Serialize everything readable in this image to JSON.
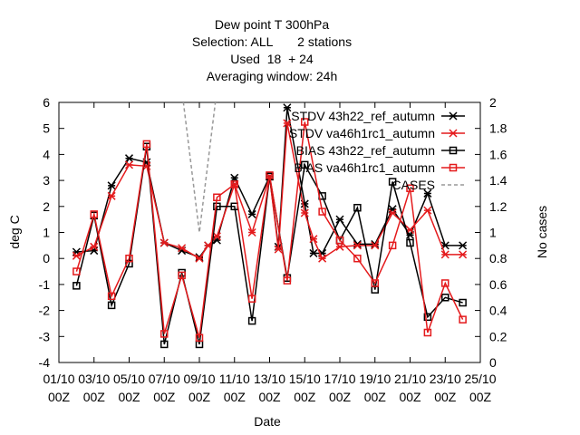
{
  "chart_data": {
    "type": "line",
    "title_lines": [
      "Dew point T 300hPa",
      "Selection: ALL       2 stations",
      "Used  18  + 24",
      "Averaging window: 24h"
    ],
    "xlabel": "Date",
    "ylabel": "deg C",
    "y2label": "No cases",
    "ylim": [
      -4,
      6
    ],
    "y2lim": [
      0,
      2
    ],
    "yticks": [
      "-4",
      "-3",
      "-2",
      "-1",
      "0",
      "1",
      "2",
      "3",
      "4",
      "5",
      "6"
    ],
    "y2ticks": [
      "0",
      "0.2",
      "0.4",
      "0.6",
      "0.8",
      "1",
      "1.2",
      "1.4",
      "1.6",
      "1.8",
      "2"
    ],
    "xlim": [
      1,
      25
    ],
    "xticks": [
      {
        "x": 1,
        "line1": "01/10",
        "line2": "00Z"
      },
      {
        "x": 3,
        "line1": "03/10",
        "line2": "00Z"
      },
      {
        "x": 5,
        "line1": "05/10",
        "line2": "00Z"
      },
      {
        "x": 7,
        "line1": "07/10",
        "line2": "00Z"
      },
      {
        "x": 9,
        "line1": "09/10",
        "line2": "00Z"
      },
      {
        "x": 11,
        "line1": "11/10",
        "line2": "00Z"
      },
      {
        "x": 13,
        "line1": "13/10",
        "line2": "00Z"
      },
      {
        "x": 15,
        "line1": "15/10",
        "line2": "00Z"
      },
      {
        "x": 17,
        "line1": "17/10",
        "line2": "00Z"
      },
      {
        "x": 19,
        "line1": "19/10",
        "line2": "00Z"
      },
      {
        "x": 21,
        "line1": "21/10",
        "line2": "00Z"
      },
      {
        "x": 23,
        "line1": "23/10",
        "line2": "00Z"
      },
      {
        "x": 25,
        "line1": "25/10",
        "line2": "00Z"
      }
    ],
    "legend_position": "top-right",
    "series": [
      {
        "name": "STDV 43h22_ref_autumn",
        "color": "#000000",
        "marker": "star",
        "x": [
          2,
          3,
          4,
          5,
          6,
          7,
          8,
          9,
          9.5,
          10,
          11,
          12,
          13,
          13.5,
          14,
          15,
          15.5,
          16,
          17,
          18,
          19,
          20,
          21,
          22,
          23,
          24
        ],
        "y": [
          0.25,
          0.3,
          2.8,
          3.85,
          3.7,
          0.6,
          0.3,
          0.05,
          0.5,
          0.7,
          3.1,
          1.7,
          3.15,
          0.45,
          5.8,
          2.1,
          0.2,
          0.2,
          1.5,
          0.55,
          0.55,
          1.9,
          0.9,
          2.5,
          0.5,
          0.5
        ]
      },
      {
        "name": "STDV va46h1rc1_autumn",
        "color": "#e41a1c",
        "marker": "star",
        "x": [
          2,
          3,
          4,
          5,
          6,
          7,
          8,
          9,
          9.5,
          10,
          11,
          12,
          13,
          13.5,
          14,
          15,
          15.5,
          16,
          17,
          18,
          19,
          20,
          21,
          22,
          23,
          24
        ],
        "y": [
          0.1,
          0.45,
          2.4,
          3.6,
          3.55,
          0.6,
          0.4,
          0.0,
          0.5,
          0.85,
          2.85,
          1.0,
          3.15,
          0.35,
          5.2,
          1.75,
          0.75,
          0.0,
          0.45,
          0.5,
          0.5,
          1.75,
          1.1,
          1.85,
          0.15,
          0.15
        ]
      },
      {
        "name": "BIAS 43h22_ref_autumn",
        "color": "#000000",
        "marker": "square",
        "x": [
          2,
          3,
          4,
          5,
          6,
          7,
          8,
          9,
          10,
          11,
          12,
          13,
          14,
          15,
          16,
          17,
          18,
          19,
          20,
          21,
          22,
          23,
          24
        ],
        "y": [
          -1.05,
          1.65,
          -1.8,
          -0.2,
          4.3,
          -3.3,
          -0.55,
          -3.3,
          2.0,
          2.0,
          -2.4,
          3.15,
          -0.75,
          3.6,
          2.4,
          0.7,
          1.95,
          -1.2,
          2.95,
          0.6,
          -2.25,
          -1.5,
          -1.7
        ]
      },
      {
        "name": "BIAS va46h1rc1_autumn",
        "color": "#e41a1c",
        "marker": "square",
        "x": [
          2,
          3,
          4,
          5,
          6,
          7,
          8,
          9,
          10,
          11,
          12,
          13,
          14,
          15,
          16,
          17,
          18,
          19,
          20,
          21,
          22,
          23,
          24
        ],
        "y": [
          -0.5,
          1.7,
          -1.45,
          0.0,
          4.4,
          -2.9,
          -0.65,
          -3.05,
          2.35,
          2.85,
          -1.55,
          3.2,
          -0.85,
          5.25,
          1.8,
          0.7,
          0.0,
          -0.95,
          0.5,
          2.7,
          -2.85,
          -0.95,
          -2.35
        ]
      },
      {
        "name": "CASES",
        "color": "#999999",
        "marker": "none",
        "dash": "4,3",
        "axis": "y2",
        "x": [
          8,
          9,
          10
        ],
        "y": [
          2.1,
          1.0,
          2.1
        ]
      }
    ]
  }
}
